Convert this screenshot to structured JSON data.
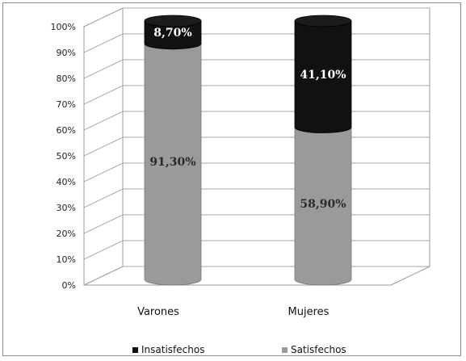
{
  "chart_data": {
    "type": "bar",
    "stacked": true,
    "style": "3d-cylinder",
    "categories": [
      "Varones",
      "Mujeres"
    ],
    "series": [
      {
        "name": "Satisfechos",
        "values": [
          91.3,
          58.9
        ],
        "labels": [
          "91,30%",
          "58,90%"
        ],
        "color": "#9a9a9a",
        "label_color": "#2a2a2a"
      },
      {
        "name": "Insatisfechos",
        "values": [
          8.7,
          41.1
        ],
        "labels": [
          "8,70%",
          "41,10%"
        ],
        "color": "#111111",
        "label_color": "#ffffff"
      }
    ],
    "y_ticks": [
      "0%",
      "10%",
      "20%",
      "30%",
      "40%",
      "50%",
      "60%",
      "70%",
      "80%",
      "90%",
      "100%"
    ],
    "ylim": [
      0,
      100
    ],
    "grid": true,
    "legend_position": "bottom",
    "legend": [
      "Insatisfechos",
      "Satisfechos"
    ]
  }
}
